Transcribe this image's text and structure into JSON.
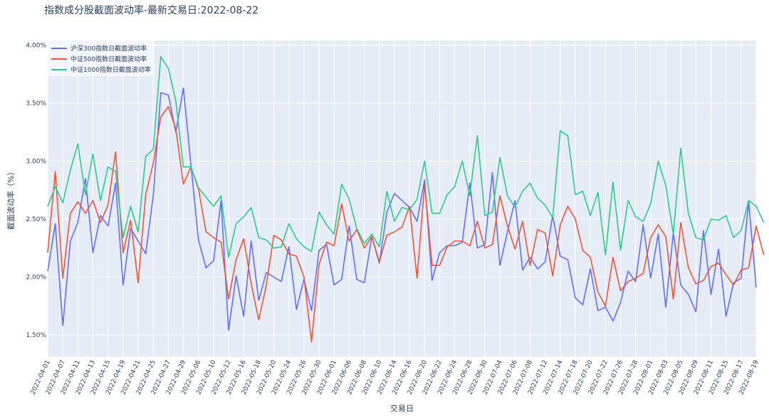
{
  "chart_data": {
    "type": "line",
    "title": "指数成分股截面波动率-最新交易日:2022-08-22",
    "xlabel": "交易日",
    "ylabel": "截面波动率（%）",
    "ylim": [
      1.31,
      4.04
    ],
    "yticks": [
      1.5,
      2.0,
      2.5,
      3.0,
      3.5,
      4.0
    ],
    "ytick_labels": [
      "1.50%",
      "2.00%",
      "2.50%",
      "3.00%",
      "3.50%",
      "4.00%"
    ],
    "grid": true,
    "legend_position": "top-left",
    "xtick_labels": [
      "2022-04-01",
      "2022-04-07",
      "2022-04-11",
      "2022-04-13",
      "2022-04-15",
      "2022-04-19",
      "2022-04-21",
      "2022-04-25",
      "2022-04-27",
      "2022-04-29",
      "2022-05-06",
      "2022-05-10",
      "2022-05-12",
      "2022-05-16",
      "2022-05-18",
      "2022-05-20",
      "2022-05-24",
      "2022-05-26",
      "2022-05-30",
      "2022-06-01",
      "2022-06-06",
      "2022-06-08",
      "2022-06-10",
      "2022-06-14",
      "2022-06-16",
      "2022-06-20",
      "2022-06-22",
      "2022-06-24",
      "2022-06-28",
      "2022-06-30",
      "2022-07-04",
      "2022-07-06",
      "2022-07-08",
      "2022-07-12",
      "2022-07-14",
      "2022-07-18",
      "2022-07-20",
      "2022-07-22",
      "2022-07-26",
      "2022-07-28",
      "2022-08-01",
      "2022-08-03",
      "2022-08-05",
      "2022-08-09",
      "2022-08-11",
      "2022-08-15",
      "2022-08-17",
      "2022-08-19"
    ],
    "series": [
      {
        "name": "沪深300指数日截面波动率",
        "color": "#636efa",
        "values": [
          2.05,
          2.46,
          1.58,
          2.31,
          2.47,
          2.85,
          2.21,
          2.53,
          2.44,
          2.81,
          1.93,
          2.42,
          2.31,
          2.2,
          2.7,
          3.59,
          3.57,
          3.25,
          3.63,
          2.97,
          2.32,
          2.08,
          2.14,
          2.66,
          1.54,
          2.01,
          1.66,
          2.31,
          1.8,
          2.04,
          2.0,
          1.96,
          2.26,
          1.72,
          1.98,
          1.71,
          2.23,
          2.28,
          1.93,
          1.98,
          2.44,
          1.98,
          1.95,
          2.35,
          2.12,
          2.56,
          2.72,
          2.66,
          2.6,
          2.48,
          2.84,
          1.97,
          2.21,
          2.27,
          2.27,
          2.3,
          2.81,
          2.25,
          2.28,
          2.9,
          2.1,
          2.39,
          2.66,
          2.06,
          2.17,
          2.07,
          2.13,
          2.53,
          2.18,
          2.15,
          1.82,
          1.76,
          2.07,
          1.71,
          1.74,
          1.62,
          1.78,
          2.05,
          1.96,
          2.45,
          1.99,
          2.37,
          1.74,
          2.38,
          1.93,
          1.85,
          1.7,
          2.4,
          1.85,
          2.24,
          1.66,
          1.95,
          1.99,
          2.65,
          1.91
        ]
      },
      {
        "name": "中证500指数日截面波动率",
        "color": "#ef553b",
        "values": [
          2.21,
          2.91,
          1.99,
          2.55,
          2.65,
          2.55,
          2.66,
          2.47,
          2.62,
          3.08,
          2.21,
          2.49,
          1.95,
          2.71,
          2.98,
          3.38,
          3.47,
          3.28,
          2.8,
          2.95,
          2.76,
          2.39,
          2.34,
          2.3,
          1.81,
          2.15,
          2.33,
          1.94,
          1.63,
          1.93,
          2.36,
          2.32,
          2.2,
          2.18,
          2.0,
          1.44,
          2.11,
          2.3,
          2.27,
          2.63,
          2.31,
          2.41,
          2.25,
          2.35,
          2.13,
          2.36,
          2.39,
          2.43,
          2.61,
          1.99,
          2.8,
          2.1,
          2.1,
          2.26,
          2.31,
          2.31,
          2.27,
          2.48,
          2.25,
          2.28,
          2.7,
          2.44,
          2.24,
          2.48,
          2.1,
          2.41,
          2.38,
          2.01,
          2.45,
          2.61,
          2.5,
          2.23,
          2.17,
          1.87,
          1.75,
          2.17,
          1.88,
          1.96,
          1.99,
          2.03,
          2.34,
          2.45,
          2.35,
          1.81,
          2.47,
          2.08,
          1.94,
          1.97,
          2.09,
          2.12,
          2.02,
          1.93,
          2.06,
          2.08,
          2.44,
          2.19
        ]
      },
      {
        "name": "中证1000指数日截面波动率",
        "color": "#2fc98d",
        "values": [
          2.61,
          2.78,
          2.64,
          2.92,
          3.15,
          2.71,
          3.06,
          2.66,
          2.95,
          2.91,
          2.34,
          2.61,
          2.39,
          3.04,
          3.1,
          3.9,
          3.8,
          3.52,
          2.95,
          2.95,
          2.77,
          2.69,
          2.61,
          2.7,
          2.17,
          2.46,
          2.52,
          2.6,
          2.34,
          2.32,
          2.25,
          2.26,
          2.46,
          2.33,
          2.26,
          2.22,
          2.56,
          2.45,
          2.37,
          2.8,
          2.67,
          2.42,
          2.29,
          2.37,
          2.26,
          2.74,
          2.48,
          2.6,
          2.58,
          2.67,
          3.0,
          2.55,
          2.55,
          2.71,
          2.78,
          3.0,
          2.7,
          3.22,
          2.53,
          2.56,
          3.03,
          2.7,
          2.6,
          2.74,
          2.81,
          2.68,
          2.62,
          2.51,
          3.26,
          3.22,
          2.71,
          2.74,
          2.53,
          2.73,
          2.19,
          2.82,
          2.23,
          2.66,
          2.52,
          2.48,
          2.63,
          3.0,
          2.79,
          2.37,
          3.11,
          2.55,
          2.34,
          2.32,
          2.5,
          2.49,
          2.53,
          2.34,
          2.4,
          2.66,
          2.61,
          2.47
        ]
      }
    ]
  }
}
